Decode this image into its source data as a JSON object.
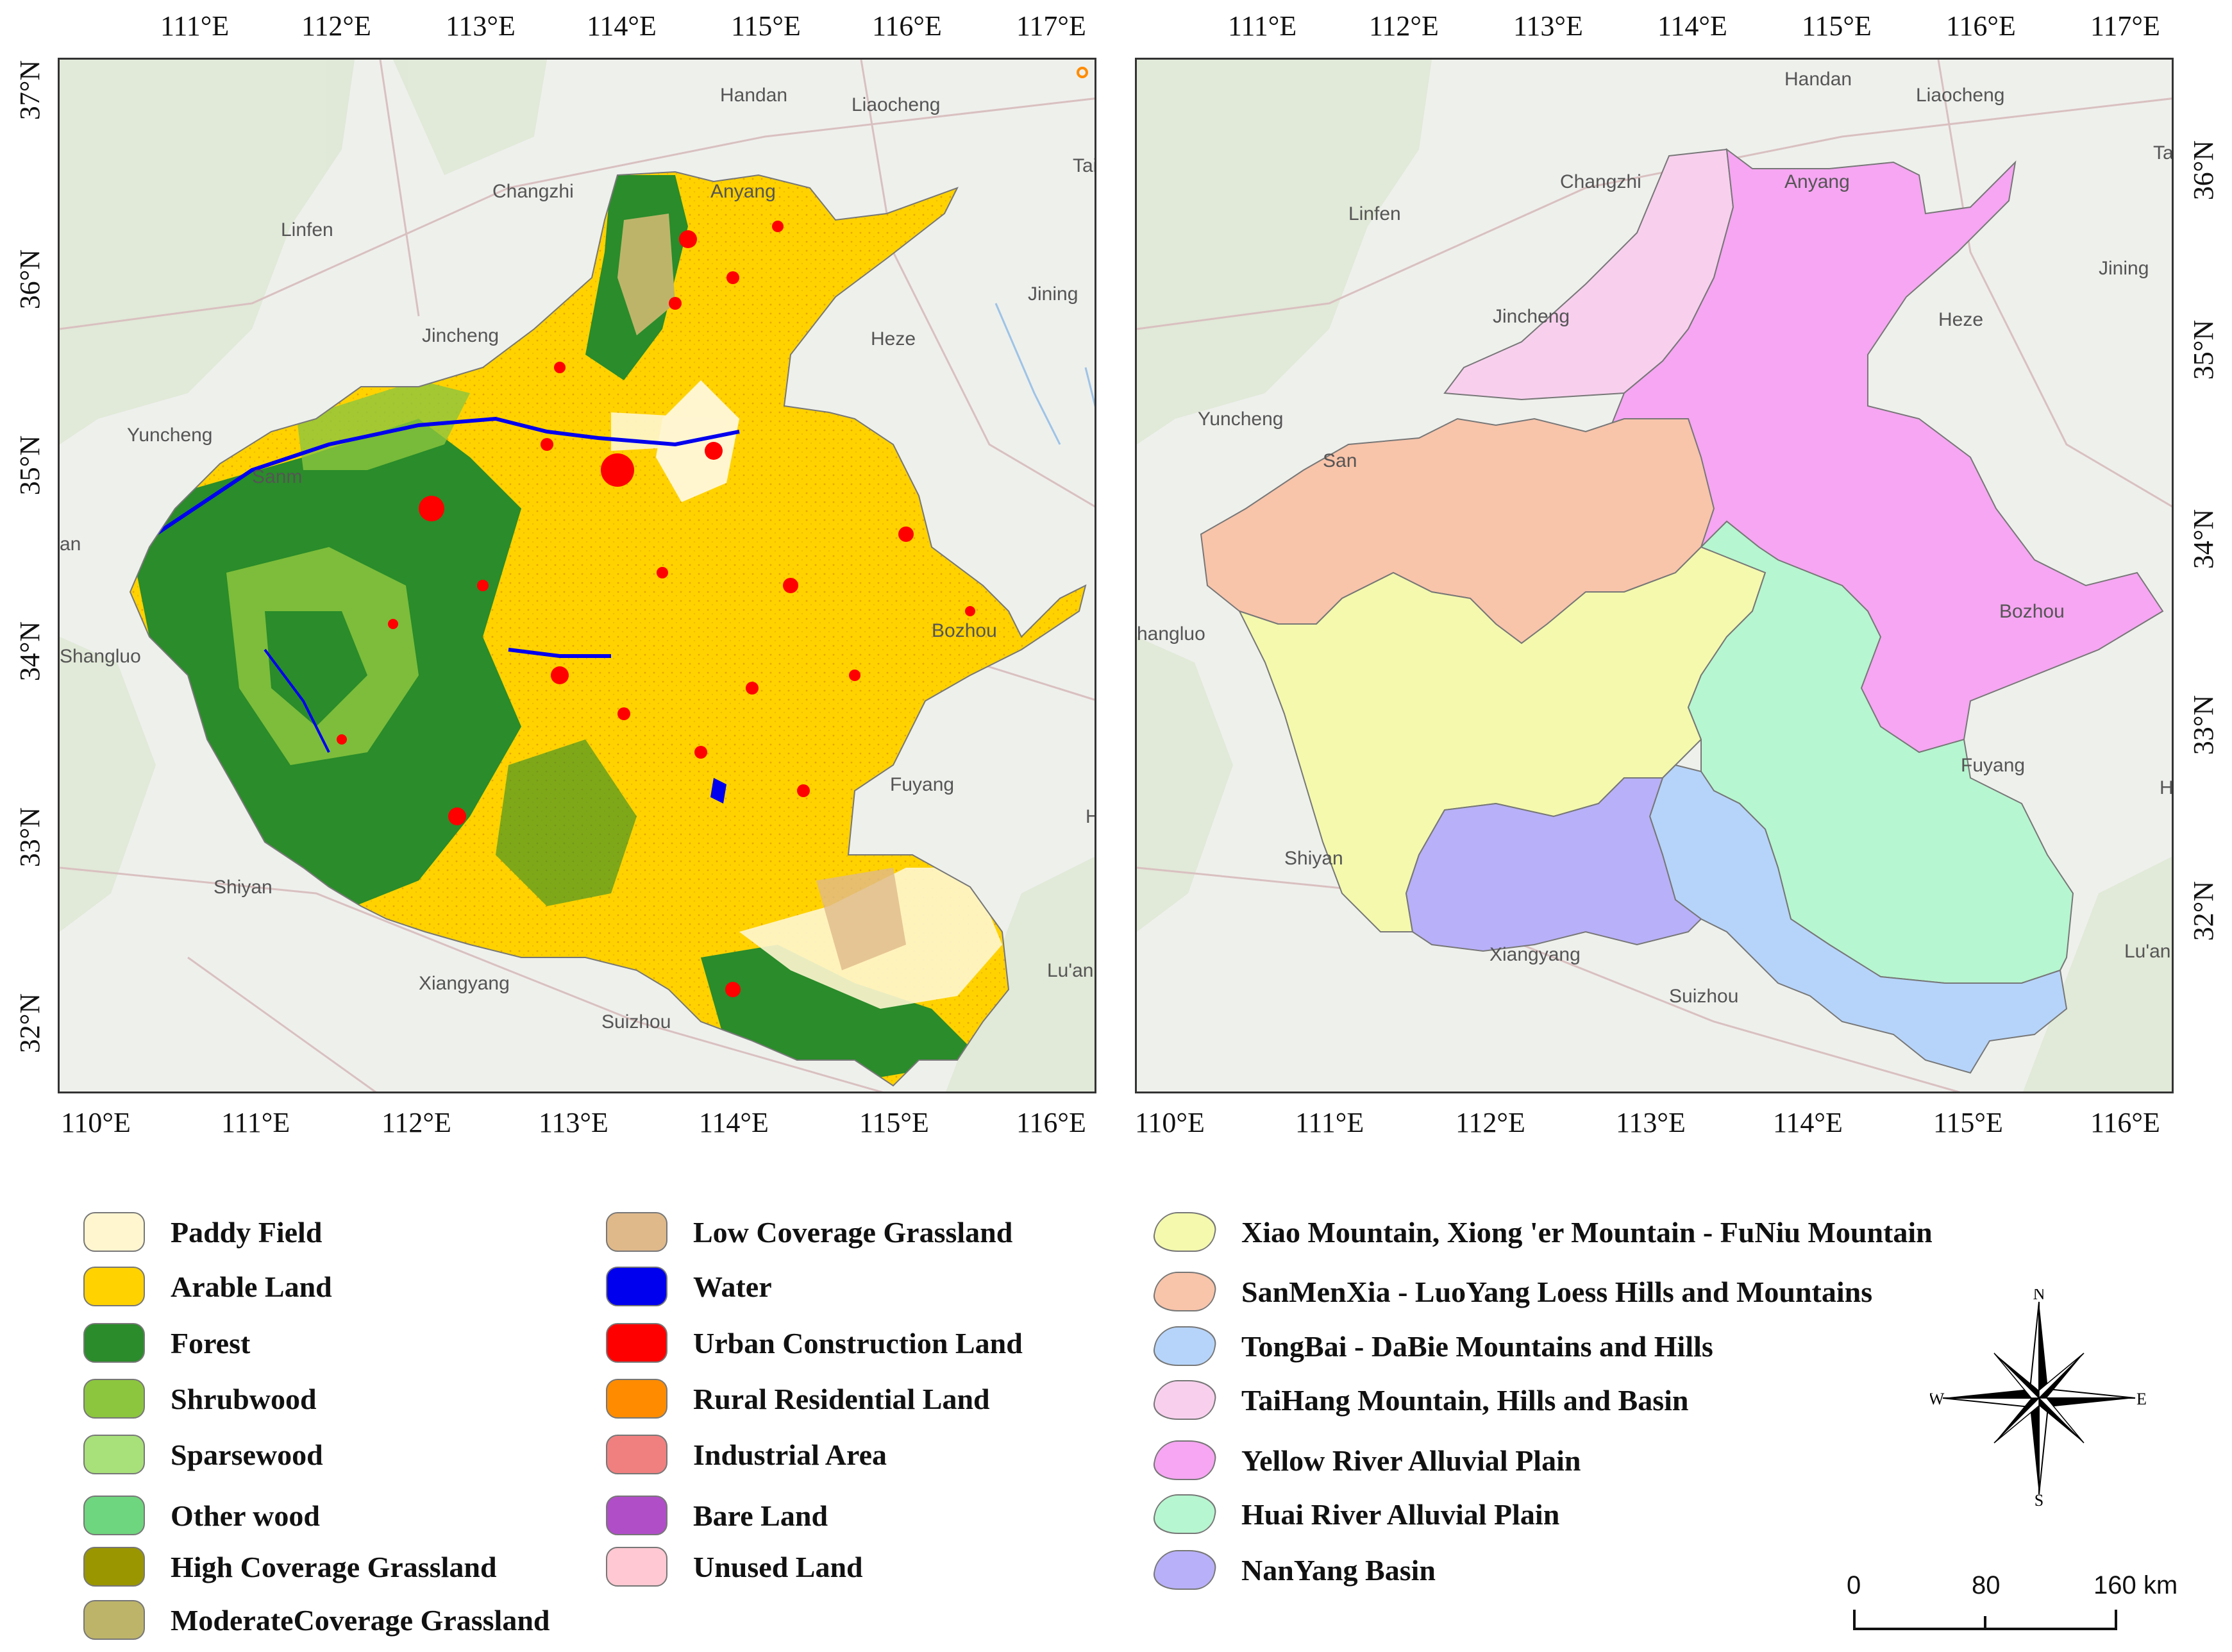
{
  "left_map": {
    "top_lon_ticks": [
      "111°E",
      "112°E",
      "113°E",
      "114°E",
      "115°E",
      "116°E",
      "117°E"
    ],
    "bottom_lon_ticks": [
      "110°E",
      "111°E",
      "112°E",
      "113°E",
      "114°E",
      "115°E",
      "116°E"
    ],
    "lat_ticks": [
      "37°N",
      "36°N",
      "35°N",
      "34°N",
      "33°N",
      "32°N"
    ],
    "base_labels": [
      "Handan",
      "Liaocheng",
      "Tai",
      "Changzhi",
      "Anyang",
      "Linfen",
      "Jincheng",
      "Heze",
      "Jining",
      "Yuncheng",
      "Sanm",
      "Bozhou",
      "Shangluo",
      "Fuyang",
      "Shiyan",
      "Xiangyang",
      "Suizhou",
      "Lu'an",
      "an",
      "H"
    ]
  },
  "right_map": {
    "top_lon_ticks": [
      "111°E",
      "112°E",
      "113°E",
      "114°E",
      "115°E",
      "116°E",
      "117°E"
    ],
    "bottom_lon_ticks": [
      "110°E",
      "111°E",
      "112°E",
      "113°E",
      "114°E",
      "115°E",
      "116°E"
    ],
    "lat_ticks": [
      "36°N",
      "35°N",
      "34°N",
      "33°N",
      "32°N"
    ],
    "base_labels": [
      "Handan",
      "Liaocheng",
      "Tai'",
      "Changzhi",
      "Anyang",
      "Linfen",
      "Jincheng",
      "Heze",
      "Jining",
      "Yuncheng",
      "San",
      "Bozhou",
      "hangluo",
      "Fuyang",
      "H",
      "Shiyan",
      "Xiangyang",
      "Suizhou",
      "Lu'an"
    ]
  },
  "landuse_legend": [
    {
      "label": "Paddy Field",
      "color": "#fff6d0"
    },
    {
      "label": "Arable Land",
      "color": "#ffd200"
    },
    {
      "label": "Forest",
      "color": "#2a8c2a"
    },
    {
      "label": "Shrubwood",
      "color": "#8cc63e"
    },
    {
      "label": "Sparsewood",
      "color": "#a8e07a"
    },
    {
      "label": "Other wood",
      "color": "#6ed67e"
    },
    {
      "label": "High  Coverage Grassland",
      "color": "#9a9600"
    },
    {
      "label": "ModerateCoverage Grassland",
      "color": "#bdb46a"
    },
    {
      "label": "Low Coverage Grassland",
      "color": "#e0b98a"
    },
    {
      "label": "Water",
      "color": "#0000ee"
    },
    {
      "label": "Urban Construction Land",
      "color": "#ff0000"
    },
    {
      "label": "Rural Residential Land",
      "color": "#ff8c00"
    },
    {
      "label": "Industrial Area",
      "color": "#f08080"
    },
    {
      "label": "Bare Land",
      "color": "#b04ec8"
    },
    {
      "label": "Unused Land",
      "color": "#ffc8d2"
    }
  ],
  "region_legend": [
    {
      "label": "Xiao Mountain, Xiong 'er Mountain - FuNiu Mountain",
      "color": "#f4f9ad"
    },
    {
      "label": "SanMenXia - LuoYang Loess Hills and Mountains",
      "color": "#f8c4aa"
    },
    {
      "label": "TongBai - DaBie Mountains and Hills",
      "color": "#b6d4fa"
    },
    {
      "label": "TaiHang Mountain, Hills and Basin",
      "color": "#f8d0ee"
    },
    {
      "label": "Yellow River Alluvial Plain",
      "color": "#f6a6f2"
    },
    {
      "label": "Huai River Alluvial Plain",
      "color": "#b6f6d0"
    },
    {
      "label": "NanYang Basin",
      "color": "#b8b0f8"
    }
  ],
  "compass": {
    "n": "N",
    "s": "S",
    "e": "E",
    "w": "W"
  },
  "scale": {
    "labels": [
      "0",
      "80",
      "160 km"
    ]
  }
}
